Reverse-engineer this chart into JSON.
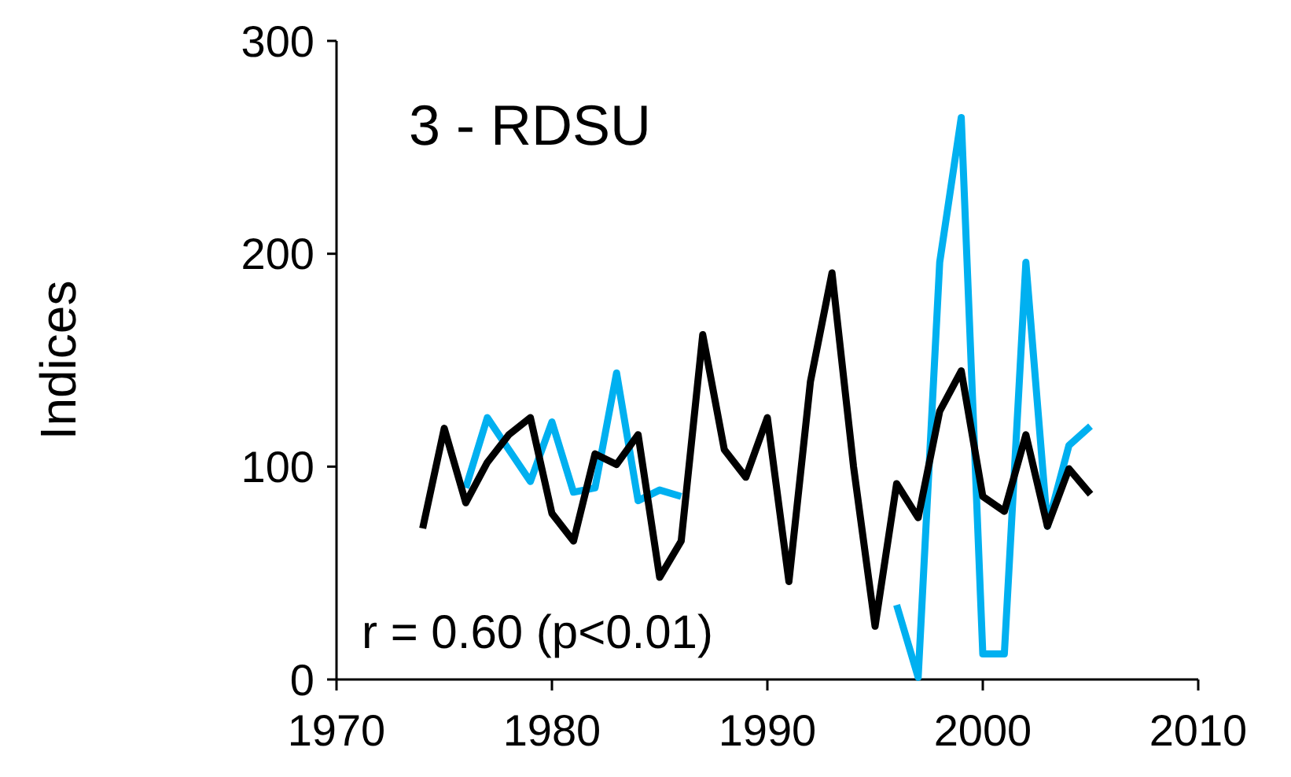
{
  "chart_data": {
    "type": "line",
    "title": "3 - RDSU",
    "ylabel": "Indices",
    "annotations": [
      "r = 0.60 (p<0.01)"
    ],
    "x": [
      1974,
      1975,
      1976,
      1977,
      1978,
      1979,
      1980,
      1981,
      1982,
      1983,
      1984,
      1985,
      1986,
      1987,
      1988,
      1989,
      1990,
      1991,
      1992,
      1993,
      1994,
      1995,
      1996,
      1997,
      1998,
      1999,
      2000,
      2001,
      2002,
      2003,
      2004,
      2005
    ],
    "series": [
      {
        "color": "#00b0f0",
        "values": [
          null,
          null,
          90,
          123,
          108,
          93,
          121,
          88,
          90,
          144,
          84,
          89,
          86,
          null,
          null,
          null,
          null,
          null,
          null,
          null,
          null,
          null,
          35,
          1,
          196,
          264,
          12,
          12,
          196,
          72,
          110,
          119
        ]
      },
      {
        "color": "#000000",
        "values": [
          71,
          118,
          83,
          102,
          115,
          123,
          78,
          65,
          106,
          101,
          115,
          48,
          65,
          162,
          108,
          95,
          123,
          46,
          140,
          191,
          100,
          25,
          92,
          76,
          126,
          145,
          86,
          79,
          115,
          72,
          99,
          87
        ]
      }
    ],
    "xlim": [
      1970,
      2010
    ],
    "xticks": [
      1970,
      1980,
      1990,
      2000,
      2010
    ],
    "ylim": [
      0,
      300
    ],
    "yticks": [
      0,
      100,
      200,
      300
    ],
    "grid": false,
    "marker": "none",
    "line_style": "solid"
  }
}
